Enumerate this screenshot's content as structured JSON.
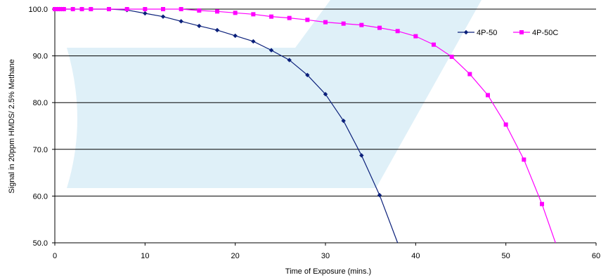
{
  "colors": {
    "watermark": "#dff0f8",
    "gridline": "#000000",
    "series_4p50": "#0a1f7a",
    "series_4p50c": "#ff00ff"
  },
  "chart_data": {
    "type": "line",
    "title": "",
    "xlabel": "Time of Exposure (mins.)",
    "ylabel": "Signal in 20ppm HMDS/ 2.5% Methane",
    "xlim": [
      0,
      60
    ],
    "ylim": [
      50,
      100
    ],
    "x_ticks": [
      "0",
      "10",
      "20",
      "30",
      "40",
      "50",
      "60"
    ],
    "y_ticks": [
      "50.0",
      "60.0",
      "70.0",
      "80.0",
      "90.0",
      "100.0"
    ],
    "grid": "horizontal",
    "legend_position": "top-right",
    "series": [
      {
        "name": "4P-50",
        "marker": "diamond",
        "color": "#0a1f7a",
        "x": [
          0,
          0.25,
          0.5,
          0.75,
          1,
          2,
          3,
          4,
          6,
          8,
          10,
          12,
          14,
          16,
          18,
          20,
          22,
          24,
          26,
          28,
          30,
          32,
          34,
          36,
          38
        ],
        "y": [
          100,
          100,
          100,
          100,
          100,
          100,
          100,
          100,
          100,
          99.8,
          99.1,
          98.4,
          97.4,
          96.4,
          95.5,
          94.3,
          93.1,
          91.2,
          89.1,
          85.9,
          81.8,
          76.1,
          68.7,
          60.2,
          50
        ]
      },
      {
        "name": "4P-50C",
        "marker": "square",
        "color": "#ff00ff",
        "x": [
          0,
          0.25,
          0.5,
          0.75,
          1,
          2,
          3,
          4,
          6,
          8,
          10,
          12,
          14,
          16,
          18,
          20,
          22,
          24,
          26,
          28,
          30,
          32,
          34,
          36,
          38,
          40,
          42,
          44,
          46,
          48,
          50,
          52,
          54,
          55.5
        ],
        "y": [
          100,
          100,
          100,
          100,
          100,
          100,
          100,
          100,
          100,
          100,
          100,
          100,
          100,
          99.7,
          99.5,
          99.2,
          98.9,
          98.4,
          98.1,
          97.7,
          97.2,
          96.9,
          96.6,
          96.0,
          95.3,
          94.2,
          92.4,
          89.8,
          86.1,
          81.6,
          75.3,
          67.8,
          58.3,
          50
        ]
      }
    ]
  }
}
